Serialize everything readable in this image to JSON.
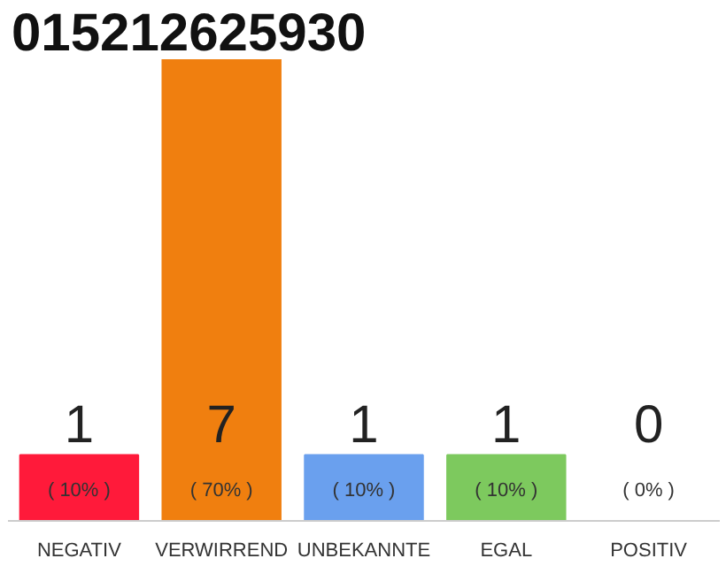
{
  "chart_data": {
    "type": "bar",
    "title": "015212625930",
    "categories": [
      "NEGATIV",
      "VERWIRREND",
      "UNBEKANNTE",
      "EGAL",
      "POSITIV"
    ],
    "values": [
      1,
      7,
      1,
      1,
      0
    ],
    "colors": [
      "#ff1a3a",
      "#f07f0f",
      "#6aa0ee",
      "#7dc95e",
      "#cccccc"
    ],
    "tick_labels": "x",
    "data_labels": true,
    "annotations": [
      "( 10% )",
      "( 70% )",
      "( 10% )",
      "( 10% )",
      "( 0% )"
    ],
    "grid": false
  }
}
